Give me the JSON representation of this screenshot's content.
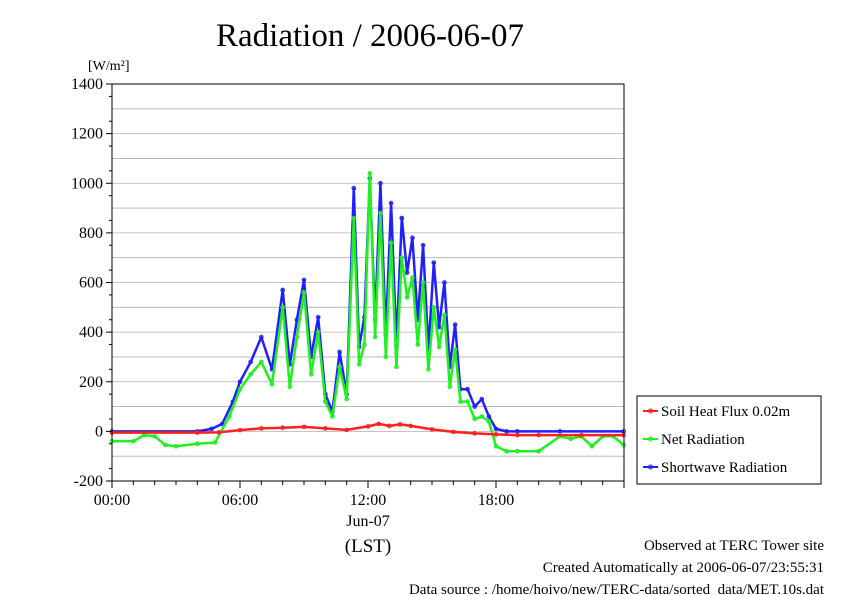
{
  "chart_data": {
    "type": "line",
    "title": "Radiation / 2006-06-07",
    "ylabel_unit": "[W/m²]",
    "xlabel": "(LST)",
    "x_date_label": "Jun-07",
    "x_range": [
      "00:00",
      "24:00"
    ],
    "ylim": [
      -200,
      1400
    ],
    "yticks": [
      "1400",
      "1200",
      "1000",
      "800",
      "600",
      "400",
      "200",
      "0",
      "-200"
    ],
    "xticks": [
      "00:00",
      "06:00",
      "12:00",
      "18:00"
    ],
    "grid": true,
    "legend_position": "right",
    "series": [
      {
        "name": "Soil Heat Flux 0.02m",
        "color": "#ff2020",
        "x": [
          "00:00",
          "04:00",
          "05:00",
          "06:00",
          "07:00",
          "08:00",
          "09:00",
          "10:00",
          "11:00",
          "12:00",
          "12:30",
          "13:00",
          "13:30",
          "14:00",
          "15:00",
          "16:00",
          "17:00",
          "18:00",
          "19:00",
          "20:00",
          "22:00",
          "23:59"
        ],
        "y": [
          -5,
          -5,
          -4,
          5,
          12,
          15,
          18,
          12,
          6,
          20,
          30,
          22,
          28,
          22,
          8,
          -2,
          -8,
          -12,
          -15,
          -15,
          -15,
          -15
        ]
      },
      {
        "name": "Net Radiation",
        "color": "#20f020",
        "x": [
          "00:00",
          "01:00",
          "01:30",
          "02:00",
          "02:30",
          "03:00",
          "04:00",
          "04:50",
          "05:30",
          "06:00",
          "06:30",
          "07:00",
          "07:30",
          "08:00",
          "08:20",
          "08:40",
          "09:00",
          "09:20",
          "09:40",
          "10:00",
          "10:20",
          "10:40",
          "11:00",
          "11:20",
          "11:35",
          "11:50",
          "12:05",
          "12:20",
          "12:35",
          "12:50",
          "13:05",
          "13:20",
          "13:35",
          "13:50",
          "14:05",
          "14:20",
          "14:35",
          "14:50",
          "15:05",
          "15:20",
          "15:35",
          "15:50",
          "16:05",
          "16:20",
          "16:40",
          "17:00",
          "17:20",
          "17:40",
          "18:00",
          "18:30",
          "19:00",
          "20:00",
          "21:00",
          "21:30",
          "22:00",
          "22:30",
          "23:00",
          "23:30",
          "23:59"
        ],
        "y": [
          -40,
          -40,
          -15,
          -20,
          -55,
          -60,
          -50,
          -45,
          60,
          170,
          230,
          280,
          190,
          500,
          180,
          380,
          560,
          230,
          400,
          120,
          60,
          260,
          130,
          860,
          270,
          350,
          1040,
          380,
          880,
          300,
          760,
          260,
          700,
          540,
          620,
          350,
          600,
          250,
          500,
          340,
          470,
          180,
          330,
          120,
          120,
          50,
          60,
          40,
          -60,
          -80,
          -80,
          -80,
          -20,
          -30,
          -20,
          -60,
          -20,
          -20,
          -55
        ]
      },
      {
        "name": "Shortwave Radiation",
        "color": "#2020ff",
        "x": [
          "00:00",
          "04:00",
          "04:40",
          "05:10",
          "05:40",
          "06:00",
          "06:30",
          "07:00",
          "07:30",
          "08:00",
          "08:20",
          "08:40",
          "09:00",
          "09:20",
          "09:40",
          "10:00",
          "10:20",
          "10:40",
          "11:00",
          "11:20",
          "11:35",
          "11:50",
          "12:05",
          "12:20",
          "12:35",
          "12:50",
          "13:05",
          "13:20",
          "13:35",
          "13:50",
          "14:05",
          "14:20",
          "14:35",
          "14:50",
          "15:05",
          "15:20",
          "15:35",
          "15:50",
          "16:05",
          "16:20",
          "16:40",
          "17:00",
          "17:20",
          "17:40",
          "18:00",
          "18:30",
          "19:00",
          "21:00",
          "23:59"
        ],
        "y": [
          0,
          0,
          10,
          30,
          120,
          200,
          280,
          380,
          250,
          570,
          270,
          450,
          610,
          300,
          460,
          150,
          80,
          320,
          150,
          980,
          340,
          460,
          1020,
          450,
          1000,
          390,
          920,
          350,
          860,
          640,
          780,
          450,
          750,
          330,
          680,
          420,
          600,
          260,
          430,
          170,
          170,
          100,
          130,
          60,
          10,
          0,
          0,
          0,
          0
        ]
      }
    ]
  },
  "footer": {
    "line1": "Observed at TERC Tower site",
    "line2": "Created Automatically at 2006-06-07/23:55:31",
    "line3": "Data source : /home/hoivo/new/TERC-data/sorted_data/MET.10s.dat"
  }
}
